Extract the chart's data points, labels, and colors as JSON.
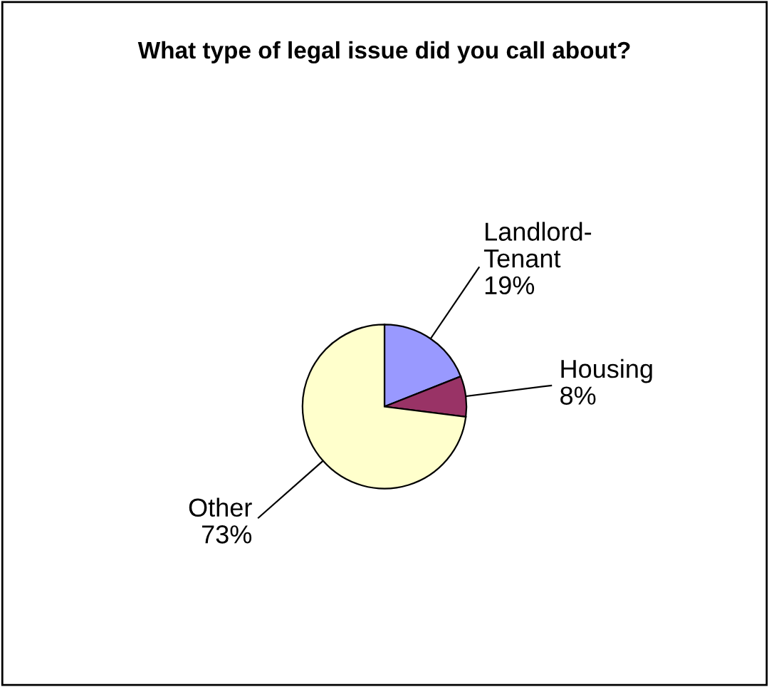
{
  "chart_data": {
    "type": "pie",
    "title": "What type of legal issue did you call about?",
    "categories": [
      "Landlord-Tenant",
      "Housing",
      "Other"
    ],
    "values": [
      19,
      8,
      73
    ],
    "colors": [
      "#9999ff",
      "#993366",
      "#ffffcc"
    ],
    "value_labels": [
      "19%",
      "8%",
      "73%"
    ],
    "legend": false
  }
}
